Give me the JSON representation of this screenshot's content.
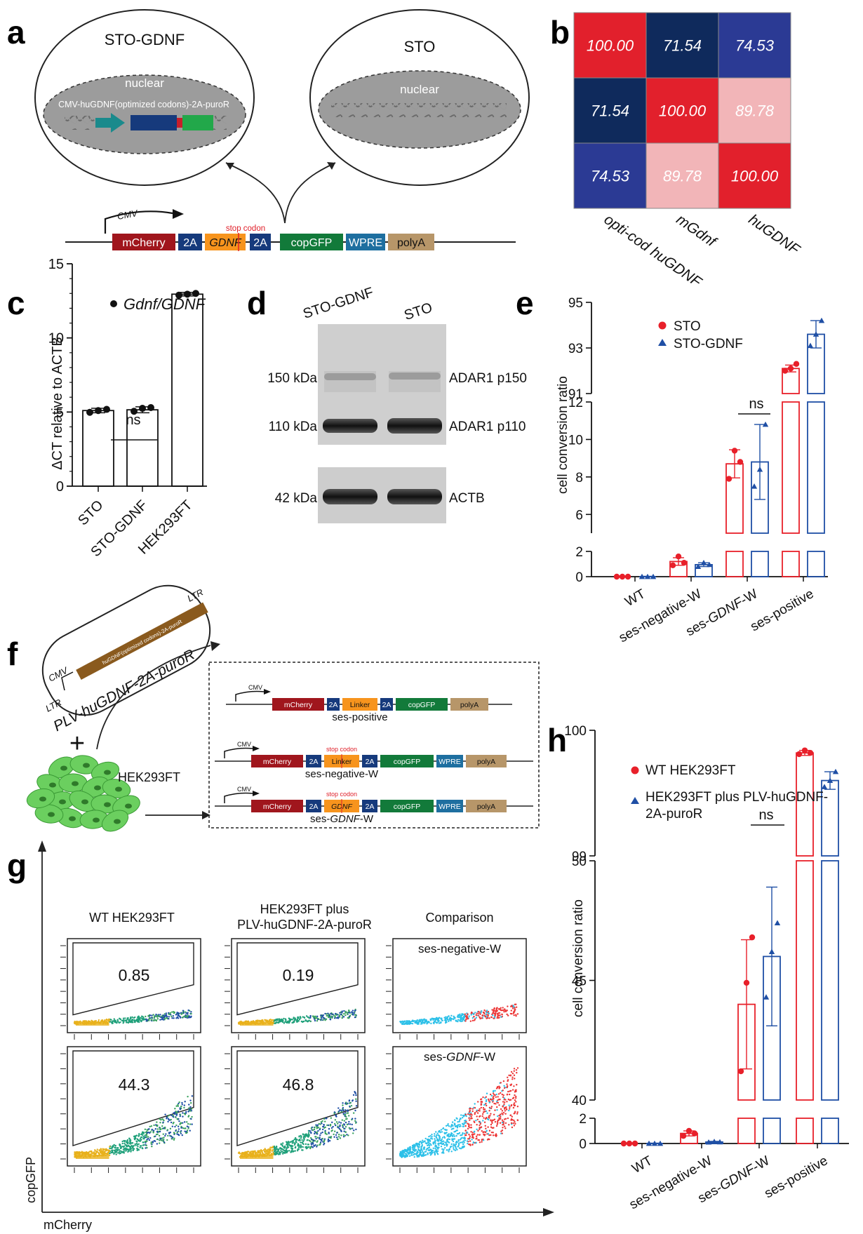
{
  "panel_labels": {
    "a": "a",
    "b": "b",
    "c": "c",
    "d": "d",
    "e": "e",
    "f": "f",
    "g": "g",
    "h": "h"
  },
  "panel_a": {
    "cell_left": "STO-GDNF",
    "cell_right": "STO",
    "nuclear": "nuclear",
    "construct_label": "CMV-huGDNF(optimized codons)-2A-puroR",
    "cmv": "CMV",
    "stop_codon": "stop codon",
    "segments": [
      "mCherry",
      "2A",
      "GDNF",
      "2A",
      "copGFP",
      "WPRE",
      "polyA"
    ],
    "colors": {
      "mcherry": "#a0161d",
      "twoA": "#163a7c",
      "gdnf": "#f7941d",
      "copgfp": "#127a3a",
      "wpre": "#1e6fa0",
      "polya": "#b79669",
      "teal": "#1a8a8c",
      "green": "#22a84a"
    }
  },
  "chart_data": [
    {
      "id": "b",
      "type": "heatmap",
      "xlabels": [
        "opti-cod huGDNF",
        "mGdnf",
        "huGDNF"
      ],
      "matrix": [
        [
          "100.00",
          "71.54",
          "74.53"
        ],
        [
          "71.54",
          "100.00",
          "89.78"
        ],
        [
          "74.53",
          "89.78",
          "100.00"
        ]
      ],
      "cell_colors": [
        [
          "#e2202c",
          "#0f2a5c",
          "#2b3a94"
        ],
        [
          "#0f2a5c",
          "#e2202c",
          "#f2b5b8"
        ],
        [
          "#2b3a94",
          "#f2b5b8",
          "#e2202c"
        ]
      ]
    },
    {
      "id": "c",
      "type": "bar",
      "legend": "Gdnf/GDNF",
      "ylabel": "ΔCT relative to  ACTB",
      "ylim": [
        0,
        15
      ],
      "yticks": [
        "0",
        "5",
        "10",
        "15"
      ],
      "categories": [
        "STO",
        "STO-GDNF",
        "HEK293FT"
      ],
      "values": [
        5.1,
        5.15,
        12.95
      ],
      "errors": [
        0.15,
        0.2,
        0.12
      ],
      "points": [
        [
          4.98,
          5.1,
          5.18
        ],
        [
          5.05,
          5.25,
          5.3
        ],
        [
          12.88,
          12.95,
          13.0
        ]
      ],
      "annotation": "ns"
    },
    {
      "id": "e",
      "type": "bar",
      "ylabel": "cell conversion ratio",
      "categories": [
        "WT",
        "ses-negative-W",
        "ses-GDNF-W",
        "ses-positive"
      ],
      "italic_part": {
        "index": 2,
        "text": "GDNF"
      },
      "axis_segments": [
        {
          "range": [
            0,
            2
          ],
          "ticks": [
            "0",
            "2"
          ]
        },
        {
          "range": [
            5,
            12
          ],
          "ticks": [
            "6",
            "8",
            "10",
            "12"
          ]
        },
        {
          "range": [
            91,
            95
          ],
          "ticks": [
            "91",
            "93",
            "95"
          ]
        }
      ],
      "series": [
        {
          "name": "STO",
          "color": "#e8202a",
          "values": [
            0.0,
            1.2,
            8.7,
            92.1
          ],
          "errors": [
            0.03,
            0.3,
            0.75,
            0.15
          ],
          "points": [
            [
              0,
              0,
              0
            ],
            [
              0.9,
              1.6,
              1.1
            ],
            [
              7.9,
              9.4,
              8.8
            ],
            [
              92.0,
              92.1,
              92.3
            ]
          ]
        },
        {
          "name": "STO-GDNF",
          "color": "#1f4fa5",
          "values": [
            0.0,
            0.95,
            8.8,
            93.6
          ],
          "errors": [
            0.03,
            0.15,
            2.0,
            0.6
          ],
          "points": [
            [
              0,
              0,
              0
            ],
            [
              0.8,
              1.1,
              0.95
            ],
            [
              7.5,
              8.4,
              10.8
            ],
            [
              93.1,
              93.6,
              94.2
            ]
          ]
        }
      ],
      "annotation": "ns"
    },
    {
      "id": "h",
      "type": "bar",
      "ylabel": "cell conversion ratio",
      "categories": [
        "WT",
        "ses-negative-W",
        "ses-GDNF-W",
        "ses-positive"
      ],
      "italic_part": {
        "index": 2,
        "text": "GDNF"
      },
      "axis_segments": [
        {
          "range": [
            0,
            2
          ],
          "ticks": [
            "0",
            "2"
          ]
        },
        {
          "range": [
            40,
            50
          ],
          "ticks": [
            "40",
            "45",
            "50"
          ]
        },
        {
          "range": [
            99,
            100
          ],
          "ticks": [
            "99",
            "100"
          ]
        }
      ],
      "series": [
        {
          "name": "WT HEK293FT",
          "color": "#e8202a",
          "values": [
            0.0,
            0.8,
            44.0,
            99.82
          ],
          "errors": [
            0.03,
            0.2,
            2.7,
            0.02
          ],
          "points": [
            [
              0,
              0,
              0
            ],
            [
              0.6,
              1.0,
              0.8
            ],
            [
              41.2,
              44.9,
              46.8
            ],
            [
              99.81,
              99.84,
              99.82
            ]
          ]
        },
        {
          "name": "HEK293FT plus PLV-huGDNF-2A-puroR",
          "color": "#1f4fa5",
          "values": [
            0.0,
            0.12,
            46.0,
            99.6
          ],
          "errors": [
            0.03,
            0.05,
            2.9,
            0.07
          ],
          "points": [
            [
              0,
              0,
              0
            ],
            [
              0.1,
              0.15,
              0.12
            ],
            [
              44.3,
              46.2,
              47.4
            ],
            [
              99.55,
              99.6,
              99.67
            ]
          ]
        }
      ],
      "annotation": "ns"
    }
  ],
  "panel_d": {
    "col_labels": [
      "STO-GDNF",
      "STO"
    ],
    "left_labels": [
      "150 kDa",
      "110 kDa",
      "42 kDa"
    ],
    "right_labels": [
      "ADAR1 p150",
      "ADAR1 p110",
      "ACTB"
    ]
  },
  "panel_f": {
    "plasmid": "PLV-huGDNF-2A-puroR",
    "insert": "huGDNF(optimized codons)-2A-puroR",
    "ltr": "LTR",
    "cmv": "CMV",
    "plus": "+",
    "cells": "HEK293FT",
    "stop_codon": "stop codon",
    "constructs": [
      {
        "name": "ses-positive",
        "segments": [
          "mCherry",
          "2A",
          "Linker",
          "2A",
          "copGFP",
          "polyA"
        ]
      },
      {
        "name": "ses-negative-W",
        "segments": [
          "mCherry",
          "2A",
          "Linker",
          "2A",
          "copGFP",
          "WPRE",
          "polyA"
        ]
      },
      {
        "name_pre": "ses-",
        "name_it": "GDNF",
        "name_post": "-W",
        "segments": [
          "mCherry",
          "2A",
          "GDNF",
          "2A",
          "copGFP",
          "WPRE",
          "polyA"
        ]
      }
    ]
  },
  "panel_g": {
    "col_titles": [
      "WT HEK293FT",
      "HEK293FT plus",
      "PLV-huGDNF-2A-puroR",
      "Comparison"
    ],
    "gate_values": [
      "0.85",
      "0.19",
      "44.3",
      "46.8"
    ],
    "comparison_labels": [
      "ses-negative-W",
      "ses-",
      "GDNF",
      "-W"
    ],
    "xlabel": "mCherry",
    "ylabel": "copGFP",
    "colors": {
      "cyan": "#2cc0e8",
      "red": "#ec3535"
    }
  }
}
